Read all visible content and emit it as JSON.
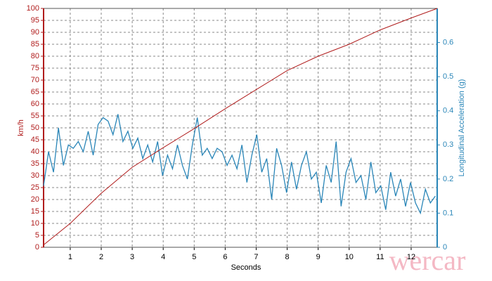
{
  "chart_data": {
    "type": "line",
    "xlabel": "Seconds",
    "ylabel": "km/h",
    "y2label": "Longitudinal Acceleration (g)",
    "xlim": [
      0.14,
      12.84
    ],
    "xticks": [
      1,
      2,
      3,
      4,
      5,
      6,
      7,
      8,
      9,
      10,
      11,
      12
    ],
    "ylim": [
      0,
      100
    ],
    "yticks": [
      0,
      5,
      10,
      15,
      20,
      25,
      30,
      35,
      40,
      45,
      50,
      55,
      60,
      65,
      70,
      75,
      80,
      85,
      90,
      95,
      100
    ],
    "y2lim": [
      0,
      0.7
    ],
    "y2ticks": [
      0,
      0.1,
      0.2,
      0.3,
      0.4,
      0.5,
      0.6
    ],
    "grid": true,
    "series": [
      {
        "color": "#b01c1c",
        "x": [
          0.14,
          1,
          2,
          3,
          4,
          5,
          6,
          7,
          8,
          9,
          10,
          11,
          12,
          12.84
        ],
        "values": [
          1,
          10,
          22.6,
          33.5,
          41.7,
          49.7,
          58,
          66,
          74,
          80,
          85,
          91,
          96,
          100
        ]
      },
      {
        "color": "#2a86b8",
        "axis": "y2",
        "x": [
          0.14,
          0.3,
          0.46,
          0.62,
          0.78,
          0.94,
          1.1,
          1.26,
          1.42,
          1.58,
          1.74,
          1.9,
          2.06,
          2.22,
          2.38,
          2.54,
          2.7,
          2.86,
          3.02,
          3.18,
          3.34,
          3.5,
          3.66,
          3.82,
          3.98,
          4.14,
          4.3,
          4.46,
          4.62,
          4.78,
          4.94,
          5.1,
          5.26,
          5.42,
          5.58,
          5.74,
          5.9,
          6.06,
          6.22,
          6.38,
          6.54,
          6.7,
          6.86,
          7.02,
          7.18,
          7.34,
          7.5,
          7.66,
          7.82,
          7.98,
          8.14,
          8.3,
          8.46,
          8.62,
          8.78,
          8.94,
          9.1,
          9.26,
          9.42,
          9.58,
          9.74,
          9.9,
          10.06,
          10.22,
          10.38,
          10.54,
          10.7,
          10.86,
          11.02,
          11.18,
          11.34,
          11.5,
          11.66,
          11.82,
          11.98,
          12.14,
          12.3,
          12.46,
          12.62,
          12.78
        ],
        "values": [
          0.18,
          0.28,
          0.22,
          0.35,
          0.24,
          0.3,
          0.29,
          0.31,
          0.28,
          0.34,
          0.27,
          0.36,
          0.38,
          0.37,
          0.33,
          0.39,
          0.31,
          0.34,
          0.29,
          0.32,
          0.26,
          0.3,
          0.25,
          0.31,
          0.21,
          0.27,
          0.23,
          0.3,
          0.24,
          0.2,
          0.3,
          0.38,
          0.27,
          0.29,
          0.26,
          0.29,
          0.28,
          0.24,
          0.27,
          0.23,
          0.3,
          0.19,
          0.27,
          0.33,
          0.22,
          0.26,
          0.14,
          0.29,
          0.24,
          0.16,
          0.25,
          0.17,
          0.24,
          0.28,
          0.2,
          0.22,
          0.13,
          0.24,
          0.19,
          0.31,
          0.12,
          0.22,
          0.26,
          0.19,
          0.21,
          0.14,
          0.25,
          0.16,
          0.18,
          0.11,
          0.22,
          0.15,
          0.2,
          0.12,
          0.19,
          0.13,
          0.1,
          0.17,
          0.13,
          0.15
        ]
      }
    ]
  },
  "watermark": "wercar"
}
